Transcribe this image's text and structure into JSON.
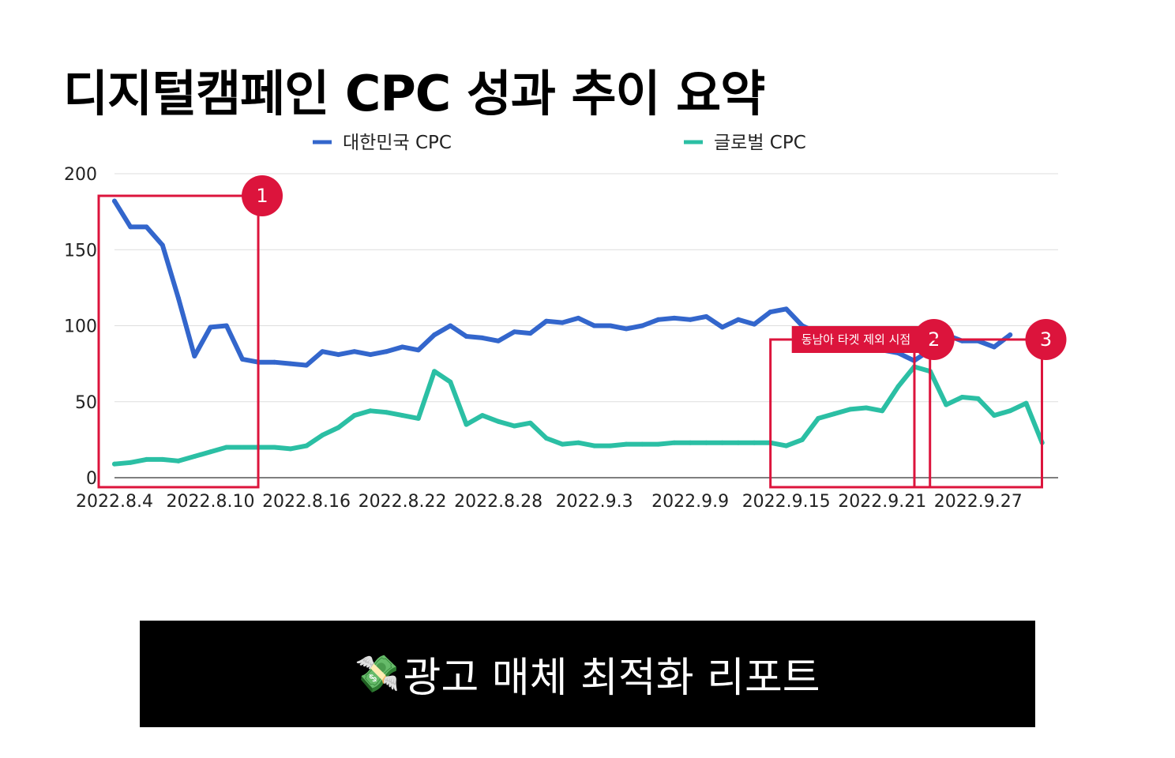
{
  "title": "디지털캠페인 CPC 성과 추이 요약",
  "footer": {
    "emoji": "💸",
    "text": "광고 매체 최적화 리포트"
  },
  "colors": {
    "korea": "#3366cc",
    "global": "#2bbfa4",
    "highlight": "#dc143c"
  },
  "chart_data": {
    "type": "line",
    "ylim": [
      0,
      200
    ],
    "yticks": [
      0,
      50,
      100,
      150,
      200
    ],
    "grid": true,
    "legend": "top",
    "xtick_labels": [
      "2022.8.4",
      "2022.8.10",
      "2022.8.16",
      "2022.8.22",
      "2022.8.28",
      "2022.9.3",
      "2022.9.9",
      "2022.9.15",
      "2022.9.21",
      "2022.9.27"
    ],
    "x": [
      "2022.8.4",
      "2022.8.5",
      "2022.8.6",
      "2022.8.7",
      "2022.8.8",
      "2022.8.9",
      "2022.8.10",
      "2022.8.11",
      "2022.8.12",
      "2022.8.13",
      "2022.8.14",
      "2022.8.15",
      "2022.8.16",
      "2022.8.17",
      "2022.8.18",
      "2022.8.19",
      "2022.8.20",
      "2022.8.21",
      "2022.8.22",
      "2022.8.23",
      "2022.8.24",
      "2022.8.25",
      "2022.8.26",
      "2022.8.27",
      "2022.8.28",
      "2022.8.29",
      "2022.8.30",
      "2022.8.31",
      "2022.9.1",
      "2022.9.2",
      "2022.9.3",
      "2022.9.4",
      "2022.9.5",
      "2022.9.6",
      "2022.9.7",
      "2022.9.8",
      "2022.9.9",
      "2022.9.10",
      "2022.9.11",
      "2022.9.12",
      "2022.9.13",
      "2022.9.14",
      "2022.9.15",
      "2022.9.16",
      "2022.9.17",
      "2022.9.18",
      "2022.9.19",
      "2022.9.20",
      "2022.9.21",
      "2022.9.22",
      "2022.9.23",
      "2022.9.24",
      "2022.9.25",
      "2022.9.26",
      "2022.9.27",
      "2022.9.28",
      "2022.9.29",
      "2022.9.30",
      "2022.10.1",
      "2022.10.2"
    ],
    "series": [
      {
        "name": "대한민국 CPC",
        "values": [
          182,
          165,
          165,
          153,
          118,
          80,
          99,
          100,
          78,
          76,
          76,
          75,
          74,
          83,
          81,
          83,
          81,
          83,
          86,
          84,
          94,
          100,
          93,
          92,
          90,
          96,
          95,
          103,
          102,
          105,
          100,
          100,
          98,
          100,
          104,
          105,
          104,
          106,
          99,
          104,
          101,
          109,
          111,
          100,
          95,
          89,
          89,
          87,
          84,
          82,
          77,
          84,
          94,
          90,
          90,
          86,
          94,
          null,
          null,
          null
        ]
      },
      {
        "name": "글로벌 CPC",
        "values": [
          9,
          10,
          12,
          12,
          11,
          14,
          17,
          20,
          20,
          20,
          20,
          19,
          21,
          28,
          33,
          41,
          44,
          43,
          41,
          39,
          70,
          63,
          35,
          41,
          37,
          34,
          36,
          26,
          22,
          23,
          21,
          21,
          22,
          22,
          22,
          23,
          23,
          23,
          23,
          23,
          23,
          23,
          21,
          25,
          39,
          42,
          45,
          46,
          44,
          60,
          73,
          70,
          48,
          53,
          52,
          41,
          44,
          49,
          23,
          null
        ]
      }
    ],
    "highlights": [
      {
        "number": "1",
        "from": "2022.8.4",
        "to": "2022.8.12"
      },
      {
        "number": "2",
        "from": "2022.9.15",
        "to": "2022.9.23",
        "note": "동남아 타겟 제외 시점"
      },
      {
        "number": "3",
        "from": "2022.9.24",
        "to": "2022.9.30"
      }
    ]
  }
}
